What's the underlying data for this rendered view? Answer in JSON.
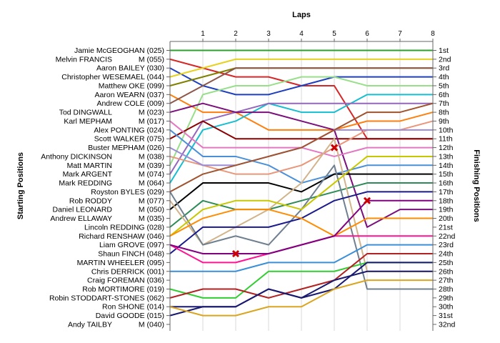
{
  "chart_data": {
    "type": "line",
    "title": "Laps",
    "ylabel_left": "Starting Positions",
    "ylabel_right": "Finishing Positions",
    "x_ticks": [
      1,
      2,
      3,
      4,
      5,
      6,
      7,
      8
    ],
    "right_labels": [
      "1st",
      "2nd",
      "3rd",
      "4th",
      "5th",
      "6th",
      "7th",
      "8th",
      "9th",
      "10th",
      "11th",
      "12th",
      "13th",
      "14th",
      "15th",
      "16th",
      "17th",
      "18th",
      "19th",
      "20th",
      "21st",
      "22nd",
      "23rd",
      "24th",
      "25th",
      "26th",
      "27th",
      "28th",
      "29th",
      "30th",
      "31st",
      "32nd"
    ],
    "drivers": [
      {
        "name": "Jamie McGEOGHAN (025)",
        "tag": ""
      },
      {
        "name": "Melvin FRANCIS",
        "tag": "M (055)"
      },
      {
        "name": "Aaron BAILEY (030)",
        "tag": ""
      },
      {
        "name": "Christopher WESEMAEL (044)",
        "tag": ""
      },
      {
        "name": "Matthew OKE (099)",
        "tag": ""
      },
      {
        "name": "Aaron WEARN (037)",
        "tag": ""
      },
      {
        "name": "Andrew COLE (009)",
        "tag": ""
      },
      {
        "name": "Tod DINGWALL",
        "tag": "M (023)"
      },
      {
        "name": "Karl MEPHAM",
        "tag": "M (017)"
      },
      {
        "name": "Alex PONTING (024)",
        "tag": ""
      },
      {
        "name": "Scott WALKER (075)",
        "tag": ""
      },
      {
        "name": "Buster MEPHAM (026)",
        "tag": ""
      },
      {
        "name": "Anthony DICKINSON",
        "tag": "M (038)"
      },
      {
        "name": "Matt MARTIN",
        "tag": "M (039)"
      },
      {
        "name": "Mark ARGENT",
        "tag": "M (074)"
      },
      {
        "name": "Mark REDDING",
        "tag": "M (064)"
      },
      {
        "name": "Royston BYLES (029)",
        "tag": ""
      },
      {
        "name": "Rob RODDY",
        "tag": "M (077)"
      },
      {
        "name": "Daniel LEONARD",
        "tag": "M (050)"
      },
      {
        "name": "Andrew ELLAWAY",
        "tag": "M (035)"
      },
      {
        "name": "Lincoln REDDING (028)",
        "tag": ""
      },
      {
        "name": "Richard RENSHAW (046)",
        "tag": ""
      },
      {
        "name": "Liam GROVE (097)",
        "tag": ""
      },
      {
        "name": "Shaun FINCH (048)",
        "tag": ""
      },
      {
        "name": "MARTIN WHEELER (095)",
        "tag": ""
      },
      {
        "name": "Chris DERRICK (001)",
        "tag": ""
      },
      {
        "name": "Craig FOREMAN (036)",
        "tag": ""
      },
      {
        "name": "Rob MORTIMORE (019)",
        "tag": ""
      },
      {
        "name": "Robin STODDART-STONES (062)",
        "tag": ""
      },
      {
        "name": "Ron SHONE (014)",
        "tag": ""
      },
      {
        "name": "David GOODE (015)",
        "tag": ""
      },
      {
        "name": "Andy TAILBY",
        "tag": "M (040)"
      }
    ],
    "series": [
      {
        "color": "#2ca02c",
        "positions": [
          1,
          1,
          1,
          1,
          1,
          1,
          1,
          1,
          1
        ]
      },
      {
        "color": "#d62728",
        "positions": [
          2,
          3,
          4,
          4,
          5,
          5,
          11,
          11,
          11
        ]
      },
      {
        "color": "#1f3fbf",
        "positions": [
          3,
          5,
          6,
          6,
          5,
          4,
          4,
          4,
          4
        ]
      },
      {
        "color": "#e6d21e",
        "positions": [
          4,
          3,
          2,
          2,
          2,
          2,
          2,
          2,
          2
        ]
      },
      {
        "color": "#7f7f00",
        "positions": [
          5,
          4,
          3,
          3,
          3,
          3,
          3,
          3,
          3
        ]
      },
      {
        "color": "#ff7f0e",
        "positions": [
          6,
          8,
          8,
          10,
          10,
          10,
          9,
          9,
          8
        ]
      },
      {
        "color": "#8c564b",
        "positions": [
          7,
          5,
          3,
          3,
          3,
          3,
          3,
          3,
          3
        ]
      },
      {
        "color": "#17becf",
        "positions": [
          16,
          10,
          9,
          7,
          8,
          8,
          6,
          6,
          6
        ]
      },
      {
        "color": "#98df8a",
        "positions": [
          14,
          6,
          5,
          5,
          4,
          4,
          5,
          5,
          5
        ]
      },
      {
        "color": "#9467bd",
        "positions": [
          15,
          9,
          8,
          7,
          7,
          7,
          7,
          7,
          7
        ]
      },
      {
        "color": "#8b0000",
        "positions": [
          11,
          9,
          11,
          11,
          11,
          11,
          11,
          11,
          11
        ]
      },
      {
        "color": "#7b0f7b",
        "positions": [
          8,
          7,
          8,
          8,
          9,
          10,
          21,
          19,
          19
        ]
      },
      {
        "color": "#e377c2",
        "positions": [
          9,
          12,
          12,
          12,
          12,
          13,
          12,
          12,
          12
        ]
      },
      {
        "color": "#4a90d9",
        "positions": [
          10,
          13,
          13,
          14,
          16,
          15,
          14,
          14,
          14
        ]
      },
      {
        "color": "#e9967a",
        "positions": [
          13,
          14,
          15,
          15,
          14,
          12,
          10,
          10,
          9
        ]
      },
      {
        "color": "#9c8bd5",
        "positions": [
          12,
          14,
          14,
          13,
          12,
          10,
          10,
          10,
          10
        ]
      },
      {
        "color": "#a0522d",
        "positions": [
          17,
          15,
          14,
          13,
          12,
          10,
          8,
          8,
          7
        ]
      },
      {
        "color": "#000000",
        "positions": [
          19,
          16,
          16,
          16,
          17,
          15,
          15,
          15,
          15
        ]
      },
      {
        "color": "#2e8b57",
        "positions": [
          21,
          18,
          19,
          19,
          18,
          17,
          16,
          16,
          16
        ]
      },
      {
        "color": "#d2b48c",
        "positions": [
          18,
          23,
          21,
          19,
          16,
          11,
          26,
          26,
          26
        ]
      },
      {
        "color": "#708090",
        "positions": [
          17,
          23,
          22,
          23,
          19,
          14,
          28,
          28,
          28
        ]
      },
      {
        "color": "#c8c800",
        "positions": [
          22,
          19,
          18,
          18,
          19,
          16,
          13,
          13,
          13
        ]
      },
      {
        "color": "#1a1a8c",
        "positions": [
          24,
          21,
          21,
          21,
          20,
          18,
          17,
          17,
          17
        ]
      },
      {
        "color": "#ff8c00",
        "positions": [
          22,
          20,
          19,
          19,
          20,
          22,
          20,
          20,
          20
        ]
      },
      {
        "color": "#ff1493",
        "positions": [
          23,
          25,
          25,
          24,
          23,
          22,
          22,
          22,
          22
        ]
      },
      {
        "color": "#800080",
        "positions": [
          23,
          24,
          24,
          24,
          23,
          22,
          18,
          18,
          18
        ]
      },
      {
        "color": "#3a8fd9",
        "positions": [
          26,
          26,
          26,
          25,
          25,
          25,
          23,
          23,
          23
        ]
      },
      {
        "color": "#32cd32",
        "positions": [
          28,
          29,
          29,
          26,
          26,
          26,
          25,
          25,
          25
        ]
      },
      {
        "color": "#b22222",
        "positions": [
          29,
          28,
          28,
          29,
          28,
          27,
          24,
          24,
          24
        ]
      },
      {
        "color": "#191970",
        "positions": [
          30,
          30,
          30,
          28,
          29,
          28,
          25,
          25,
          25
        ]
      },
      {
        "color": "#191970",
        "positions": [
          31,
          30,
          30,
          28,
          29,
          27,
          26,
          26,
          26
        ]
      },
      {
        "color": "#daa520",
        "positions": [
          30,
          31,
          31,
          30,
          30,
          28,
          27,
          27,
          27
        ]
      }
    ],
    "incident_markers": [
      {
        "lap": 2,
        "position": 24
      },
      {
        "lap": 5,
        "position": 12
      },
      {
        "lap": 6,
        "position": 18
      }
    ]
  }
}
